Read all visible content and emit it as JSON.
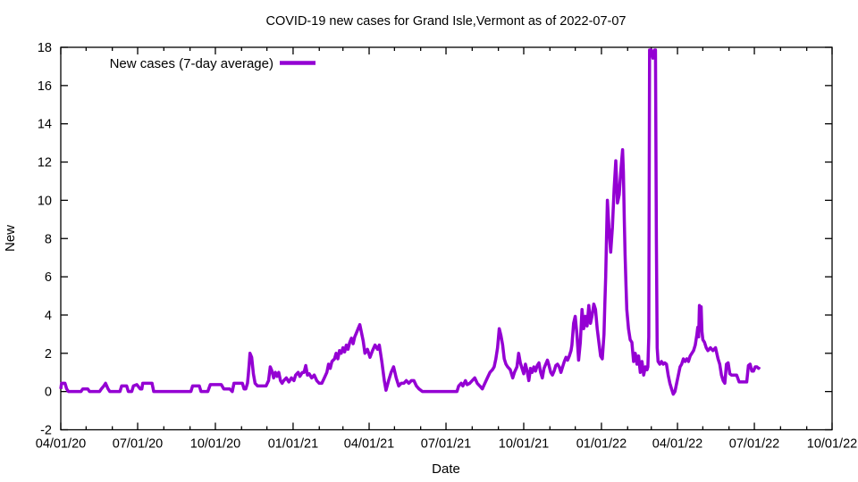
{
  "chart_data": {
    "type": "line",
    "title": "COVID-19 new cases for Grand Isle,Vermont as of 2022-07-07",
    "xlabel": "Date",
    "ylabel": "New",
    "grid": false,
    "background_color": "#ffffff",
    "axis_color": "#000000",
    "legend_position": "top-left-inside",
    "ylim": [
      -2,
      18
    ],
    "y_ticks": [
      -2,
      0,
      2,
      4,
      6,
      8,
      10,
      12,
      14,
      16,
      18
    ],
    "x_axis_unit": "days since 04/01/20",
    "xlim_days": [
      0,
      913
    ],
    "x_major_ticks": [
      {
        "day": 0,
        "label": "04/01/20"
      },
      {
        "day": 91,
        "label": "07/01/20"
      },
      {
        "day": 183,
        "label": "10/01/20"
      },
      {
        "day": 275,
        "label": "01/01/21"
      },
      {
        "day": 365,
        "label": "04/01/21"
      },
      {
        "day": 456,
        "label": "07/01/21"
      },
      {
        "day": 548,
        "label": "10/01/21"
      },
      {
        "day": 640,
        "label": "01/01/22"
      },
      {
        "day": 730,
        "label": "04/01/22"
      },
      {
        "day": 821,
        "label": "07/01/22"
      },
      {
        "day": 913,
        "label": "10/01/22"
      }
    ],
    "x_minor_ticks_days": [
      30,
      61,
      122,
      153,
      214,
      244,
      306,
      334,
      395,
      426,
      487,
      518,
      579,
      609,
      671,
      699,
      760,
      791,
      852,
      883
    ],
    "series": [
      {
        "name": "New cases (7-day average)",
        "color": "#9400D3",
        "line_width": 3.5,
        "points": [
          [
            0,
            0.14
          ],
          [
            1,
            0.43
          ],
          [
            5,
            0.43
          ],
          [
            7,
            0.14
          ],
          [
            9,
            0
          ],
          [
            24,
            0
          ],
          [
            26,
            0.14
          ],
          [
            32,
            0.14
          ],
          [
            34,
            0
          ],
          [
            46,
            0
          ],
          [
            48,
            0.14
          ],
          [
            51,
            0.29
          ],
          [
            53,
            0.43
          ],
          [
            56,
            0.14
          ],
          [
            58,
            0
          ],
          [
            70,
            0
          ],
          [
            72,
            0.29
          ],
          [
            78,
            0.29
          ],
          [
            80,
            0
          ],
          [
            84,
            0
          ],
          [
            86,
            0.29
          ],
          [
            90,
            0.36
          ],
          [
            94,
            0.14
          ],
          [
            96,
            0.14
          ],
          [
            97,
            0.43
          ],
          [
            108,
            0.43
          ],
          [
            110,
            0
          ],
          [
            120,
            0
          ],
          [
            130,
            0
          ],
          [
            140,
            0
          ],
          [
            154,
            0
          ],
          [
            156,
            0.29
          ],
          [
            164,
            0.29
          ],
          [
            166,
            0
          ],
          [
            174,
            0
          ],
          [
            177,
            0.36
          ],
          [
            190,
            0.36
          ],
          [
            193,
            0.14
          ],
          [
            200,
            0.14
          ],
          [
            203,
            0
          ],
          [
            205,
            0.43
          ],
          [
            215,
            0.43
          ],
          [
            217,
            0.14
          ],
          [
            219,
            0.14
          ],
          [
            221,
            0.43
          ],
          [
            222,
            0.86
          ],
          [
            223,
            1.43
          ],
          [
            224,
            2.0
          ],
          [
            226,
            1.79
          ],
          [
            228,
            0.93
          ],
          [
            230,
            0.43
          ],
          [
            233,
            0.29
          ],
          [
            238,
            0.29
          ],
          [
            243,
            0.29
          ],
          [
            246,
            0.57
          ],
          [
            248,
            1.29
          ],
          [
            250,
            1.07
          ],
          [
            252,
            0.71
          ],
          [
            254,
            1.0
          ],
          [
            256,
            0.79
          ],
          [
            258,
            1.0
          ],
          [
            260,
            0.57
          ],
          [
            262,
            0.43
          ],
          [
            264,
            0.57
          ],
          [
            267,
            0.71
          ],
          [
            270,
            0.5
          ],
          [
            273,
            0.71
          ],
          [
            276,
            0.57
          ],
          [
            278,
            0.86
          ],
          [
            281,
            1.0
          ],
          [
            283,
            0.79
          ],
          [
            286,
            1.0
          ],
          [
            288,
            1.0
          ],
          [
            290,
            1.36
          ],
          [
            292,
            0.86
          ],
          [
            294,
            0.93
          ],
          [
            297,
            0.71
          ],
          [
            300,
            0.86
          ],
          [
            303,
            0.57
          ],
          [
            306,
            0.43
          ],
          [
            309,
            0.43
          ],
          [
            312,
            0.71
          ],
          [
            315,
            1.0
          ],
          [
            317,
            1.43
          ],
          [
            319,
            1.21
          ],
          [
            321,
            1.57
          ],
          [
            324,
            1.71
          ],
          [
            326,
            2.0
          ],
          [
            328,
            1.71
          ],
          [
            330,
            2.14
          ],
          [
            332,
            2.0
          ],
          [
            334,
            2.29
          ],
          [
            336,
            2.07
          ],
          [
            338,
            2.43
          ],
          [
            340,
            2.21
          ],
          [
            342,
            2.57
          ],
          [
            344,
            2.79
          ],
          [
            346,
            2.5
          ],
          [
            348,
            2.86
          ],
          [
            350,
            3.07
          ],
          [
            352,
            3.29
          ],
          [
            354,
            3.5
          ],
          [
            356,
            3.07
          ],
          [
            358,
            2.64
          ],
          [
            360,
            2.0
          ],
          [
            363,
            2.21
          ],
          [
            366,
            1.79
          ],
          [
            369,
            2.14
          ],
          [
            372,
            2.43
          ],
          [
            375,
            2.21
          ],
          [
            377,
            2.43
          ],
          [
            380,
            1.57
          ],
          [
            383,
            0.57
          ],
          [
            385,
            0.07
          ],
          [
            388,
            0.57
          ],
          [
            391,
            1.0
          ],
          [
            394,
            1.29
          ],
          [
            397,
            0.71
          ],
          [
            400,
            0.29
          ],
          [
            403,
            0.43
          ],
          [
            406,
            0.43
          ],
          [
            409,
            0.57
          ],
          [
            412,
            0.43
          ],
          [
            415,
            0.57
          ],
          [
            418,
            0.57
          ],
          [
            421,
            0.29
          ],
          [
            424,
            0.14
          ],
          [
            428,
            0
          ],
          [
            436,
            0
          ],
          [
            444,
            0
          ],
          [
            452,
            0
          ],
          [
            460,
            0
          ],
          [
            469,
            0
          ],
          [
            471,
            0.29
          ],
          [
            474,
            0.43
          ],
          [
            476,
            0.29
          ],
          [
            479,
            0.57
          ],
          [
            481,
            0.36
          ],
          [
            484,
            0.43
          ],
          [
            487,
            0.57
          ],
          [
            490,
            0.71
          ],
          [
            493,
            0.43
          ],
          [
            496,
            0.29
          ],
          [
            499,
            0.14
          ],
          [
            502,
            0.43
          ],
          [
            505,
            0.71
          ],
          [
            508,
            1.0
          ],
          [
            511,
            1.14
          ],
          [
            513,
            1.29
          ],
          [
            515,
            1.71
          ],
          [
            517,
            2.29
          ],
          [
            519,
            3.29
          ],
          [
            521,
            2.93
          ],
          [
            523,
            2.43
          ],
          [
            525,
            1.71
          ],
          [
            527,
            1.43
          ],
          [
            529,
            1.29
          ],
          [
            532,
            1.14
          ],
          [
            535,
            0.71
          ],
          [
            537,
            1.0
          ],
          [
            540,
            1.29
          ],
          [
            542,
            2.0
          ],
          [
            544,
            1.5
          ],
          [
            546,
            1.21
          ],
          [
            548,
            0.93
          ],
          [
            550,
            1.43
          ],
          [
            552,
            1.07
          ],
          [
            554,
            0.57
          ],
          [
            556,
            1.21
          ],
          [
            558,
            1.0
          ],
          [
            560,
            1.29
          ],
          [
            562,
            1.07
          ],
          [
            564,
            1.36
          ],
          [
            566,
            1.5
          ],
          [
            568,
            1.0
          ],
          [
            570,
            0.71
          ],
          [
            572,
            1.21
          ],
          [
            574,
            1.43
          ],
          [
            576,
            1.64
          ],
          [
            578,
            1.36
          ],
          [
            580,
            1.0
          ],
          [
            582,
            0.86
          ],
          [
            584,
            1.07
          ],
          [
            586,
            1.36
          ],
          [
            588,
            1.43
          ],
          [
            590,
            1.29
          ],
          [
            592,
            1.0
          ],
          [
            594,
            1.29
          ],
          [
            596,
            1.57
          ],
          [
            598,
            1.79
          ],
          [
            600,
            1.64
          ],
          [
            602,
            1.86
          ],
          [
            604,
            2.14
          ],
          [
            605,
            2.43
          ],
          [
            607,
            3.57
          ],
          [
            609,
            3.93
          ],
          [
            611,
            3.0
          ],
          [
            613,
            1.64
          ],
          [
            615,
            2.57
          ],
          [
            617,
            4.29
          ],
          [
            619,
            3.29
          ],
          [
            621,
            3.93
          ],
          [
            623,
            3.43
          ],
          [
            625,
            4.5
          ],
          [
            627,
            3.57
          ],
          [
            629,
            4.0
          ],
          [
            631,
            4.57
          ],
          [
            633,
            4.29
          ],
          [
            635,
            3.29
          ],
          [
            637,
            2.57
          ],
          [
            639,
            1.86
          ],
          [
            641,
            1.71
          ],
          [
            643,
            3.0
          ],
          [
            644,
            4.5
          ],
          [
            645,
            6.0
          ],
          [
            646,
            8.0
          ],
          [
            647,
            10.0
          ],
          [
            649,
            8.43
          ],
          [
            651,
            7.29
          ],
          [
            653,
            8.57
          ],
          [
            655,
            10.57
          ],
          [
            657,
            12.07
          ],
          [
            659,
            9.86
          ],
          [
            661,
            10.29
          ],
          [
            663,
            11.57
          ],
          [
            665,
            12.64
          ],
          [
            666,
            11.5
          ],
          [
            667,
            9.0
          ],
          [
            668,
            7.14
          ],
          [
            669,
            5.57
          ],
          [
            670,
            4.29
          ],
          [
            672,
            3.29
          ],
          [
            674,
            2.71
          ],
          [
            676,
            2.57
          ],
          [
            678,
            1.57
          ],
          [
            680,
            2.0
          ],
          [
            682,
            1.43
          ],
          [
            684,
            1.86
          ],
          [
            686,
            1.0
          ],
          [
            688,
            1.57
          ],
          [
            690,
            0.86
          ],
          [
            692,
            1.29
          ],
          [
            694,
            1.14
          ],
          [
            695,
            1.29
          ],
          [
            696,
            2.86
          ],
          [
            697,
            17.86
          ],
          [
            699,
            17.86
          ],
          [
            701,
            17.43
          ],
          [
            703,
            17.86
          ],
          [
            704,
            17.86
          ],
          [
            705,
            8.0
          ],
          [
            706,
            2.29
          ],
          [
            707,
            1.57
          ],
          [
            709,
            1.43
          ],
          [
            711,
            1.57
          ],
          [
            713,
            1.43
          ],
          [
            715,
            1.5
          ],
          [
            717,
            1.43
          ],
          [
            719,
            0.86
          ],
          [
            721,
            0.43
          ],
          [
            723,
            0.14
          ],
          [
            725,
            -0.14
          ],
          [
            727,
            0
          ],
          [
            729,
            0.43
          ],
          [
            731,
            0.86
          ],
          [
            733,
            1.29
          ],
          [
            735,
            1.43
          ],
          [
            737,
            1.71
          ],
          [
            739,
            1.57
          ],
          [
            741,
            1.71
          ],
          [
            743,
            1.57
          ],
          [
            745,
            1.86
          ],
          [
            747,
            2.0
          ],
          [
            749,
            2.14
          ],
          [
            751,
            2.43
          ],
          [
            753,
            3.0
          ],
          [
            754,
            3.36
          ],
          [
            755,
            2.86
          ],
          [
            756,
            4.5
          ],
          [
            757,
            3.29
          ],
          [
            758,
            4.43
          ],
          [
            759,
            3.14
          ],
          [
            760,
            2.71
          ],
          [
            762,
            2.57
          ],
          [
            764,
            2.29
          ],
          [
            766,
            2.14
          ],
          [
            769,
            2.29
          ],
          [
            772,
            2.14
          ],
          [
            775,
            2.29
          ],
          [
            778,
            1.71
          ],
          [
            780,
            1.43
          ],
          [
            782,
            0.86
          ],
          [
            784,
            0.57
          ],
          [
            786,
            0.43
          ],
          [
            788,
            1.43
          ],
          [
            790,
            1.5
          ],
          [
            792,
            0.93
          ],
          [
            794,
            0.86
          ],
          [
            797,
            0.86
          ],
          [
            800,
            0.86
          ],
          [
            803,
            0.5
          ],
          [
            806,
            0.5
          ],
          [
            809,
            0.5
          ],
          [
            812,
            0.5
          ],
          [
            814,
            1.36
          ],
          [
            816,
            1.43
          ],
          [
            818,
            1.07
          ],
          [
            820,
            1.07
          ],
          [
            822,
            1.29
          ],
          [
            824,
            1.29
          ],
          [
            826,
            1.21
          ],
          [
            827,
            1.29
          ]
        ]
      }
    ]
  }
}
